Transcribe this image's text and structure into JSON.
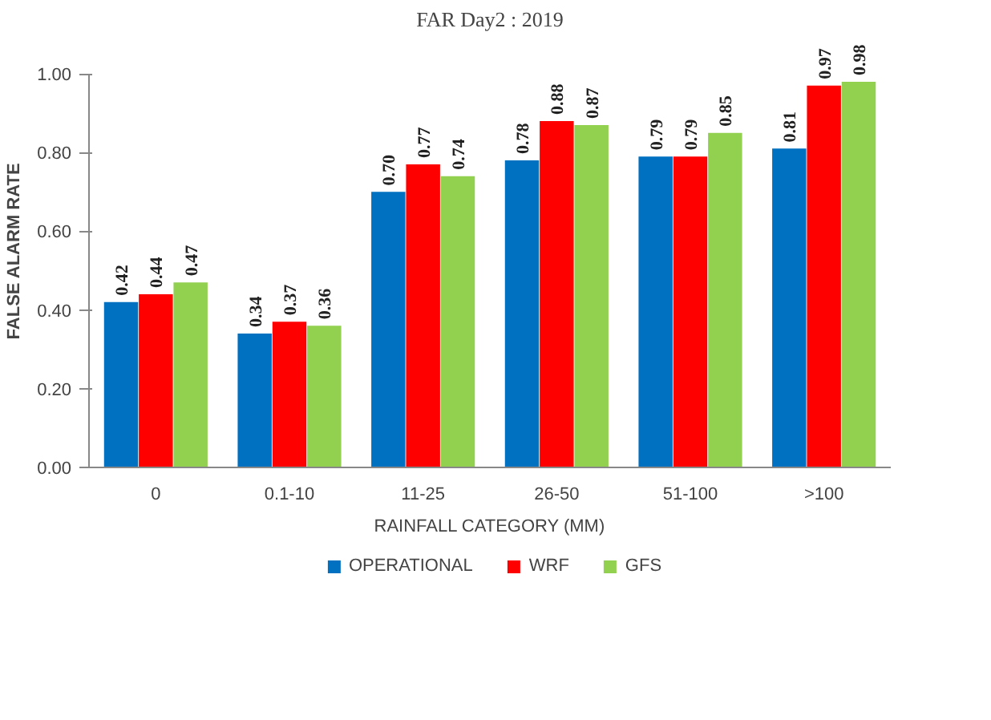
{
  "chart_data": {
    "type": "bar",
    "title": "FAR Day2 : 2019",
    "xlabel": "RAINFALL CATEGORY (MM)",
    "ylabel": "FALSE ALARM RATE",
    "categories": [
      "0",
      "0.1-10",
      "11-25",
      "26-50",
      "51-100",
      ">100"
    ],
    "series": [
      {
        "name": "OPERATIONAL",
        "color": "#0070c0",
        "values": [
          0.42,
          0.34,
          0.7,
          0.78,
          0.79,
          0.81
        ],
        "value_labels": [
          "0.42",
          "0.34",
          "0.70",
          "0.78",
          "0.79",
          "0.81"
        ]
      },
      {
        "name": "WRF",
        "color": "#ff0000",
        "values": [
          0.44,
          0.37,
          0.77,
          0.88,
          0.79,
          0.97
        ],
        "value_labels": [
          "0.44",
          "0.37",
          "0.77",
          "0.88",
          "0.79",
          "0.97"
        ]
      },
      {
        "name": "GFS",
        "color": "#92d050",
        "values": [
          0.47,
          0.36,
          0.74,
          0.87,
          0.85,
          0.98
        ],
        "value_labels": [
          "0.47",
          "0.36",
          "0.74",
          "0.87",
          "0.85",
          "0.98"
        ]
      }
    ],
    "ylim": [
      0,
      1
    ],
    "yticks": [
      {
        "value": 0,
        "label": "0.00"
      },
      {
        "value": 0.2,
        "label": "0.20"
      },
      {
        "value": 0.4,
        "label": "0.40"
      },
      {
        "value": 0.6,
        "label": "0.60"
      },
      {
        "value": 0.8,
        "label": "0.80"
      },
      {
        "value": 1,
        "label": "1.00"
      }
    ],
    "grid": false,
    "legend": "bottom"
  }
}
